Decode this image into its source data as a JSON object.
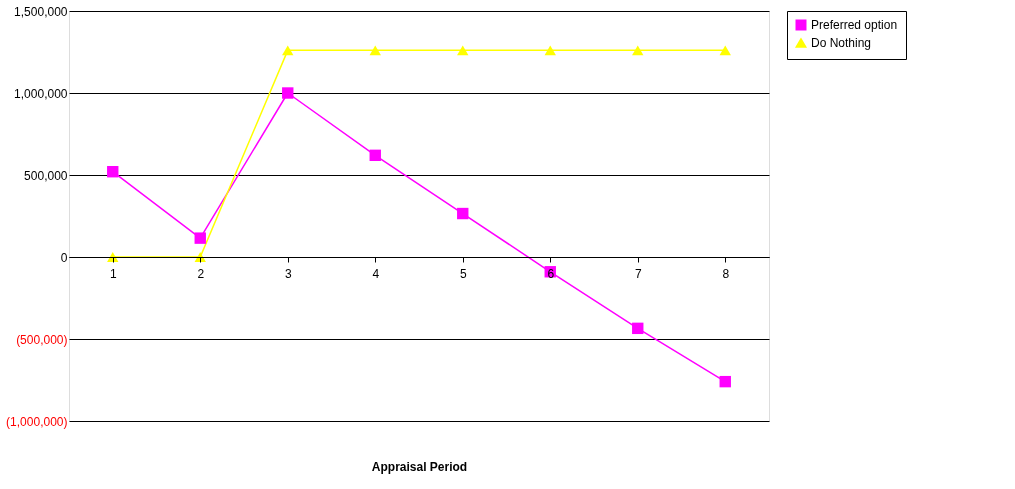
{
  "chart_data": {
    "type": "line",
    "xlabel": "Appraisal Period",
    "categories": [
      "1",
      "2",
      "3",
      "4",
      "5",
      "6",
      "7",
      "8"
    ],
    "series": [
      {
        "name": "Preferred option",
        "color": "#ff00ff",
        "marker": "square",
        "line_style": "solid",
        "values": [
          520000,
          115000,
          1000000,
          620000,
          265000,
          -90000,
          -435000,
          -760000
        ]
      },
      {
        "name": "Do Nothing",
        "color": "#ffff00",
        "marker": "triangle",
        "line_style": "solid",
        "values": [
          0,
          0,
          1260000,
          1260000,
          1260000,
          1260000,
          1260000,
          1260000
        ]
      }
    ],
    "ylim": [
      -1000000,
      1500000
    ],
    "yticks": [
      {
        "value": -1000000,
        "label": "(1,000,000)"
      },
      {
        "value": -500000,
        "label": "(500,000)"
      },
      {
        "value": 0,
        "label": "0"
      },
      {
        "value": 500000,
        "label": "500,000"
      },
      {
        "value": 1000000,
        "label": "1,000,000"
      },
      {
        "value": 1500000,
        "label": "1,500,000"
      }
    ],
    "grid": "y",
    "legend": "right"
  }
}
